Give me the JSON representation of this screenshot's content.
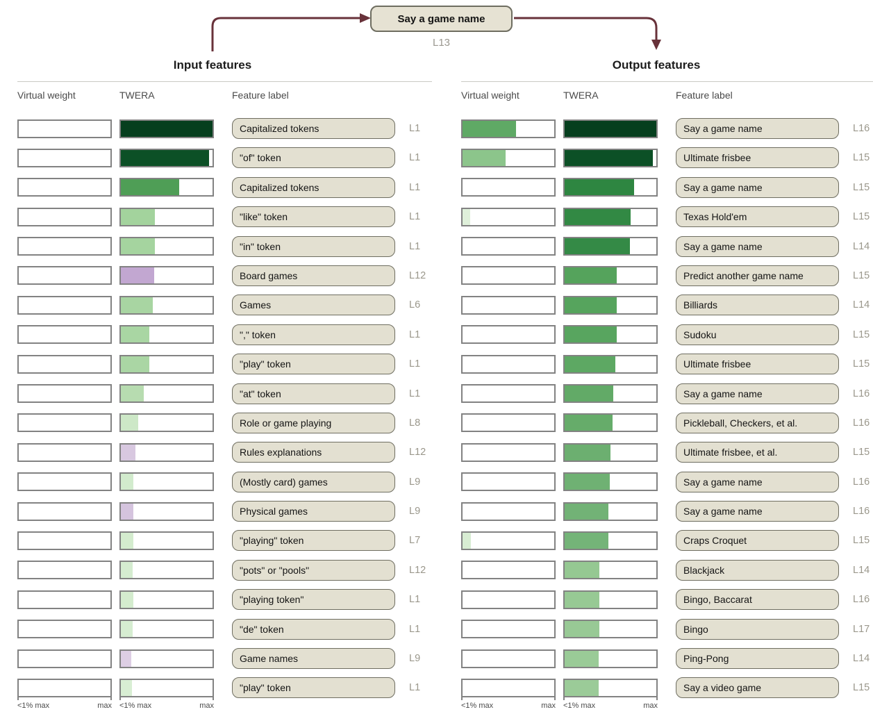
{
  "node": {
    "label": "Say a game name",
    "layer": "L13"
  },
  "colors": {
    "arrow": "#68323a",
    "bar_border": "#828282",
    "pill_bg": "#e3e0d1",
    "pill_border": "#6e6d60",
    "dark_green": "#063f1e",
    "light_purple": "#c2a7d1"
  },
  "panels": [
    {
      "title": "Input features",
      "columns": {
        "virtual_weight": "Virtual weight",
        "twera": "TWERA",
        "feature_label": "Feature label"
      },
      "axis": {
        "min": "<1% max",
        "max": "max"
      },
      "rows": [
        {
          "label": "Capitalized tokens",
          "layer": "L1",
          "vw_pct": 0,
          "vw_color": null,
          "twera_pct": 100,
          "twera_color": "#063f1e"
        },
        {
          "label": "\"of\" token",
          "layer": "L1",
          "vw_pct": 0,
          "vw_color": null,
          "twera_pct": 96,
          "twera_color": "#0c5026"
        },
        {
          "label": "Capitalized tokens",
          "layer": "L1",
          "vw_pct": 0,
          "vw_color": null,
          "twera_pct": 64,
          "twera_color": "#4f9e56"
        },
        {
          "label": "\"like\" token",
          "layer": "L1",
          "vw_pct": 0,
          "vw_color": null,
          "twera_pct": 37,
          "twera_color": "#a3d39d"
        },
        {
          "label": "\"in\" token",
          "layer": "L1",
          "vw_pct": 0,
          "vw_color": null,
          "twera_pct": 37,
          "twera_color": "#a5d49f"
        },
        {
          "label": "Board games",
          "layer": "L12",
          "vw_pct": 0,
          "vw_color": null,
          "twera_pct": 36,
          "twera_color": "#c2a7d1"
        },
        {
          "label": "Games",
          "layer": "L6",
          "vw_pct": 0,
          "vw_color": null,
          "twera_pct": 35,
          "twera_color": "#a8d5a2"
        },
        {
          "label": "\",\" token",
          "layer": "L1",
          "vw_pct": 0,
          "vw_color": null,
          "twera_pct": 31,
          "twera_color": "#a9d6a3"
        },
        {
          "label": "\"play\" token",
          "layer": "L1",
          "vw_pct": 0,
          "vw_color": null,
          "twera_pct": 31,
          "twera_color": "#aad6a4"
        },
        {
          "label": "\"at\" token",
          "layer": "L1",
          "vw_pct": 0,
          "vw_color": null,
          "twera_pct": 25,
          "twera_color": "#b7dcb0"
        },
        {
          "label": "Role or game playing",
          "layer": "L8",
          "vw_pct": 0,
          "vw_color": null,
          "twera_pct": 19,
          "twera_color": "#cde8c7"
        },
        {
          "label": "Rules explanations",
          "layer": "L12",
          "vw_pct": 0,
          "vw_color": null,
          "twera_pct": 16,
          "twera_color": "#d8c8e0"
        },
        {
          "label": "(Mostly card) games",
          "layer": "L9",
          "vw_pct": 0,
          "vw_color": null,
          "twera_pct": 14,
          "twera_color": "#d2ebcd"
        },
        {
          "label": "Physical games",
          "layer": "L9",
          "vw_pct": 0,
          "vw_color": null,
          "twera_pct": 14,
          "twera_color": "#d5c4de"
        },
        {
          "label": "\"playing\" token",
          "layer": "L7",
          "vw_pct": 0,
          "vw_color": null,
          "twera_pct": 14,
          "twera_color": "#d4ecce"
        },
        {
          "label": "\"pots\" or \"pools\"",
          "layer": "L12",
          "vw_pct": 0,
          "vw_color": null,
          "twera_pct": 13,
          "twera_color": "#d5ecd0"
        },
        {
          "label": "\"playing token\"",
          "layer": "L1",
          "vw_pct": 0,
          "vw_color": null,
          "twera_pct": 14,
          "twera_color": "#d4ecce"
        },
        {
          "label": "\"de\" token",
          "layer": "L1",
          "vw_pct": 0,
          "vw_color": null,
          "twera_pct": 13,
          "twera_color": "#d6edd1"
        },
        {
          "label": "Game names",
          "layer": "L9",
          "vw_pct": 0,
          "vw_color": null,
          "twera_pct": 11,
          "twera_color": "#ddcee4"
        },
        {
          "label": "\"play\" token",
          "layer": "L1",
          "vw_pct": 0,
          "vw_color": null,
          "twera_pct": 12,
          "twera_color": "#d8eed3"
        }
      ]
    },
    {
      "title": "Output features",
      "columns": {
        "virtual_weight": "Virtual weight",
        "twera": "TWERA",
        "feature_label": "Feature label"
      },
      "axis": {
        "min": "<1% max",
        "max": "max"
      },
      "rows": [
        {
          "label": "Say a game name",
          "layer": "L16",
          "vw_pct": 58,
          "vw_color": "#5fa965",
          "twera_pct": 100,
          "twera_color": "#063f1e"
        },
        {
          "label": "Ultimate frisbee",
          "layer": "L15",
          "vw_pct": 47,
          "vw_color": "#8cc58b",
          "twera_pct": 96,
          "twera_color": "#0c5026"
        },
        {
          "label": "Say a game name",
          "layer": "L15",
          "vw_pct": 0,
          "vw_color": null,
          "twera_pct": 76,
          "twera_color": "#2e8641"
        },
        {
          "label": "Texas Hold'em",
          "layer": "L15",
          "vw_pct": 8,
          "vw_color": "#dff0da",
          "twera_pct": 72,
          "twera_color": "#328944"
        },
        {
          "label": "Say a game name",
          "layer": "L14",
          "vw_pct": 0,
          "vw_color": null,
          "twera_pct": 71,
          "twera_color": "#348a46"
        },
        {
          "label": "Predict another game name",
          "layer": "L15",
          "vw_pct": 0,
          "vw_color": null,
          "twera_pct": 57,
          "twera_color": "#55a35c"
        },
        {
          "label": "Billiards",
          "layer": "L14",
          "vw_pct": 0,
          "vw_color": null,
          "twera_pct": 57,
          "twera_color": "#56a45d"
        },
        {
          "label": "Sudoku",
          "layer": "L15",
          "vw_pct": 0,
          "vw_color": null,
          "twera_pct": 57,
          "twera_color": "#58a55f"
        },
        {
          "label": "Ultimate frisbee",
          "layer": "L15",
          "vw_pct": 0,
          "vw_color": null,
          "twera_pct": 55,
          "twera_color": "#5da863"
        },
        {
          "label": "Say a game name",
          "layer": "L16",
          "vw_pct": 0,
          "vw_color": null,
          "twera_pct": 53,
          "twera_color": "#62aa67"
        },
        {
          "label": "Pickleball, Checkers, et al.",
          "layer": "L16",
          "vw_pct": 0,
          "vw_color": null,
          "twera_pct": 52,
          "twera_color": "#66ac6a"
        },
        {
          "label": "Ultimate frisbee, et al.",
          "layer": "L15",
          "vw_pct": 0,
          "vw_color": null,
          "twera_pct": 50,
          "twera_color": "#6caf70"
        },
        {
          "label": "Say a game name",
          "layer": "L16",
          "vw_pct": 0,
          "vw_color": null,
          "twera_pct": 49,
          "twera_color": "#6fb173"
        },
        {
          "label": "Say a game name",
          "layer": "L16",
          "vw_pct": 0,
          "vw_color": null,
          "twera_pct": 48,
          "twera_color": "#72b276"
        },
        {
          "label": "Craps Croquet",
          "layer": "L15",
          "vw_pct": 9,
          "vw_color": "#d8edd3",
          "twera_pct": 48,
          "twera_color": "#74b478"
        },
        {
          "label": "Blackjack",
          "layer": "L14",
          "vw_pct": 0,
          "vw_color": null,
          "twera_pct": 38,
          "twera_color": "#95c892"
        },
        {
          "label": "Bingo, Baccarat",
          "layer": "L16",
          "vw_pct": 0,
          "vw_color": null,
          "twera_pct": 38,
          "twera_color": "#97c994"
        },
        {
          "label": "Bingo",
          "layer": "L17",
          "vw_pct": 0,
          "vw_color": null,
          "twera_pct": 38,
          "twera_color": "#98c995"
        },
        {
          "label": "Ping-Pong",
          "layer": "L14",
          "vw_pct": 0,
          "vw_color": null,
          "twera_pct": 37,
          "twera_color": "#9acb97"
        },
        {
          "label": "Say a video game",
          "layer": "L15",
          "vw_pct": 0,
          "vw_color": null,
          "twera_pct": 37,
          "twera_color": "#9bcb98"
        }
      ]
    }
  ]
}
